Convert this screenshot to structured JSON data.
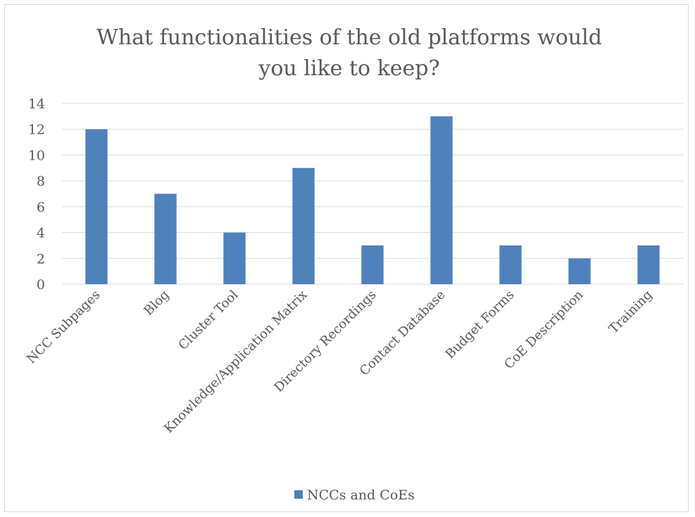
{
  "chart_data": {
    "type": "bar",
    "title_lines": [
      "What functionalities of the old platforms would",
      "you like to keep?"
    ],
    "categories": [
      "NCC Subpages",
      "Blog",
      "Cluster Tool",
      "Knowledge/Application Matrix",
      "Directory Recordings",
      "Contact Database",
      "Budget Forms",
      "CoE Description",
      "Training"
    ],
    "series": [
      {
        "name": "NCCs and CoEs",
        "values": [
          12,
          7,
          4,
          9,
          3,
          13,
          3,
          2,
          3
        ]
      }
    ],
    "ylim": [
      0,
      14
    ],
    "yticks": [
      "0",
      "2",
      "4",
      "6",
      "8",
      "10",
      "12",
      "14"
    ],
    "grid": true,
    "legend_position": "bottom",
    "colors": {
      "bar": "#4f81bd",
      "grid": "#d9d9d9",
      "text": "#595959"
    }
  }
}
